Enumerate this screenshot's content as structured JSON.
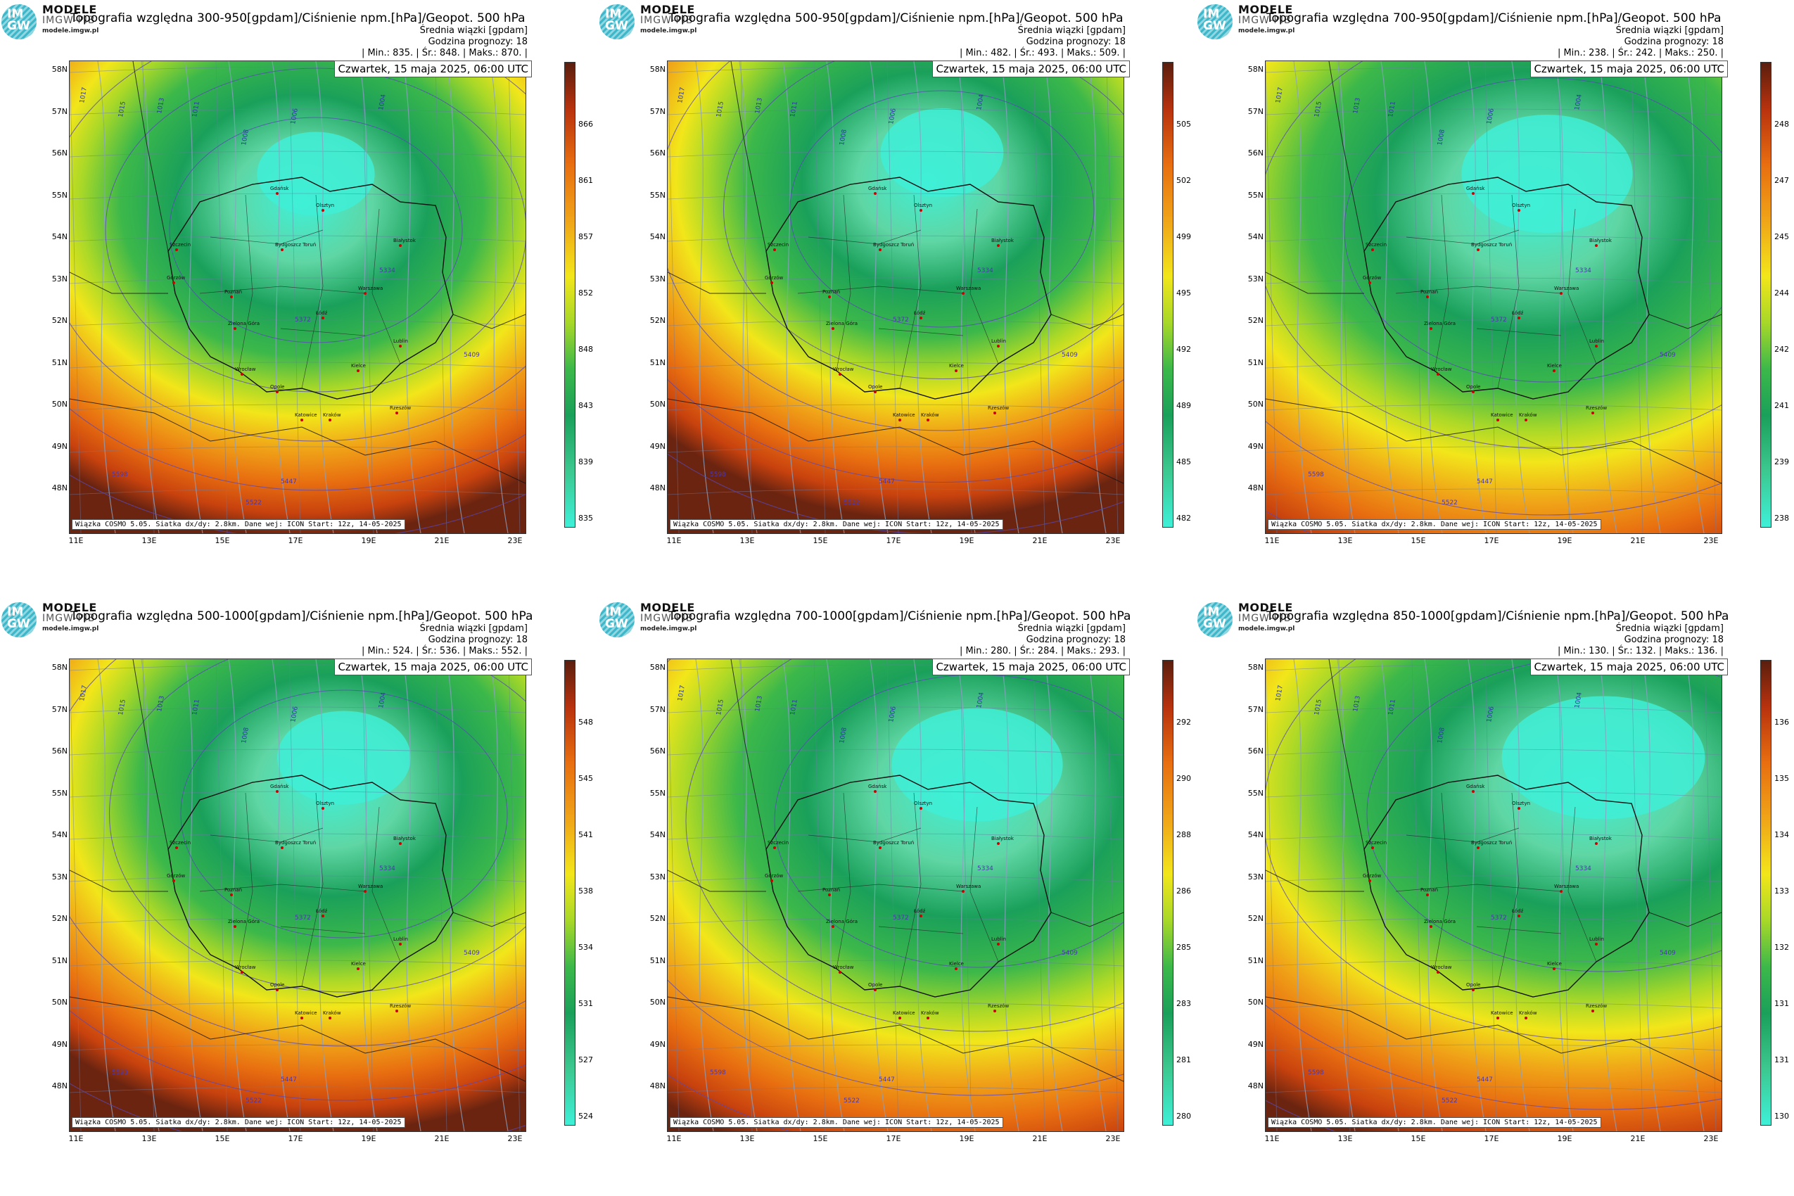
{
  "common": {
    "logo_title": "MODELE",
    "logo_subtitle": "IMGW-PIB",
    "logo_badge": "IM GW",
    "logo_url": "modele.imgw.pl",
    "ensemble": "Średnia wiązki [gpdam]",
    "forecast_hour": "Godzina prognozy: 18",
    "date": "Czwartek, 15 maja 2025, 06:00 UTC",
    "source": "Wiązka COSMO 5.05. Siatka dx/dy: 2.8km. Dane wej: ICON Start: 12z, 14-05-2025",
    "lat_labels": [
      "58N",
      "57N",
      "56N",
      "55N",
      "54N",
      "53N",
      "52N",
      "51N",
      "50N",
      "49N",
      "48N"
    ],
    "lon_labels": [
      "11E",
      "13E",
      "15E",
      "17E",
      "19E",
      "21E",
      "23E"
    ],
    "colors": {
      "low": "#3ef0d8",
      "mid_green": "#1aa05a",
      "yellow": "#f2e61a",
      "orange": "#e86e10",
      "red": "#b8320e",
      "dark": "#5a1e0e"
    }
  },
  "panels": [
    {
      "title": "Topografia względna 300-950[gpdam]/Ciśnienie npm.[hPa]/Geopot. 500 hPa",
      "min": "835.",
      "mean": "848.",
      "max": "870.",
      "cbar": [
        "866",
        "861",
        "857",
        "852",
        "848",
        "843",
        "839",
        "835"
      ]
    },
    {
      "title": "Topografia względna 500-950[gpdam]/Ciśnienie npm.[hPa]/Geopot. 500 hPa",
      "min": "482.",
      "mean": "493.",
      "max": "509.",
      "cbar": [
        "505",
        "502",
        "499",
        "495",
        "492",
        "489",
        "485",
        "482"
      ]
    },
    {
      "title": "Topografia względna 700-950[gpdam]/Ciśnienie npm.[hPa]/Geopot. 500 hPa",
      "min": "238.",
      "mean": "242.",
      "max": "250.",
      "cbar": [
        "248",
        "247",
        "245",
        "244",
        "242",
        "241",
        "239",
        "238"
      ]
    },
    {
      "title": "Topografia względna 500-1000[gpdam]/Ciśnienie npm.[hPa]/Geopot. 500 hPa",
      "min": "524.",
      "mean": "536.",
      "max": "552.",
      "cbar": [
        "548",
        "545",
        "541",
        "538",
        "534",
        "531",
        "527",
        "524"
      ]
    },
    {
      "title": "Topografia względna 700-1000[gpdam]/Ciśnienie npm.[hPa]/Geopot. 500 hPa",
      "min": "280.",
      "mean": "284.",
      "max": "293.",
      "cbar": [
        "292",
        "290",
        "288",
        "286",
        "285",
        "283",
        "281",
        "280"
      ]
    },
    {
      "title": "Topografia względna 850-1000[gpdam]/Ciśnienie npm.[hPa]/Geopot. 500 hPa",
      "min": "130.",
      "mean": "132.",
      "max": "136.",
      "cbar": [
        "136",
        "135",
        "134",
        "133",
        "132",
        "131",
        "131",
        "130"
      ]
    }
  ],
  "cities": [
    "Gdańsk",
    "Olsztyn",
    "Białystok",
    "Szczecin",
    "Bydgoszcz Toruń",
    "Gorzów",
    "Poznań",
    "Warszawa",
    "Łódź",
    "Zielona Góra",
    "Lublin",
    "Wrocław",
    "Opole",
    "Kielce",
    "Katowice",
    "Kraków",
    "Rzeszów"
  ],
  "isobar_labels": [
    "1017",
    "1015",
    "1013",
    "1011",
    "1008",
    "1006",
    "1004",
    "1000"
  ],
  "geopot_labels": [
    "5334",
    "5372",
    "5409",
    "5447",
    "5522",
    "5560",
    "5598"
  ]
}
